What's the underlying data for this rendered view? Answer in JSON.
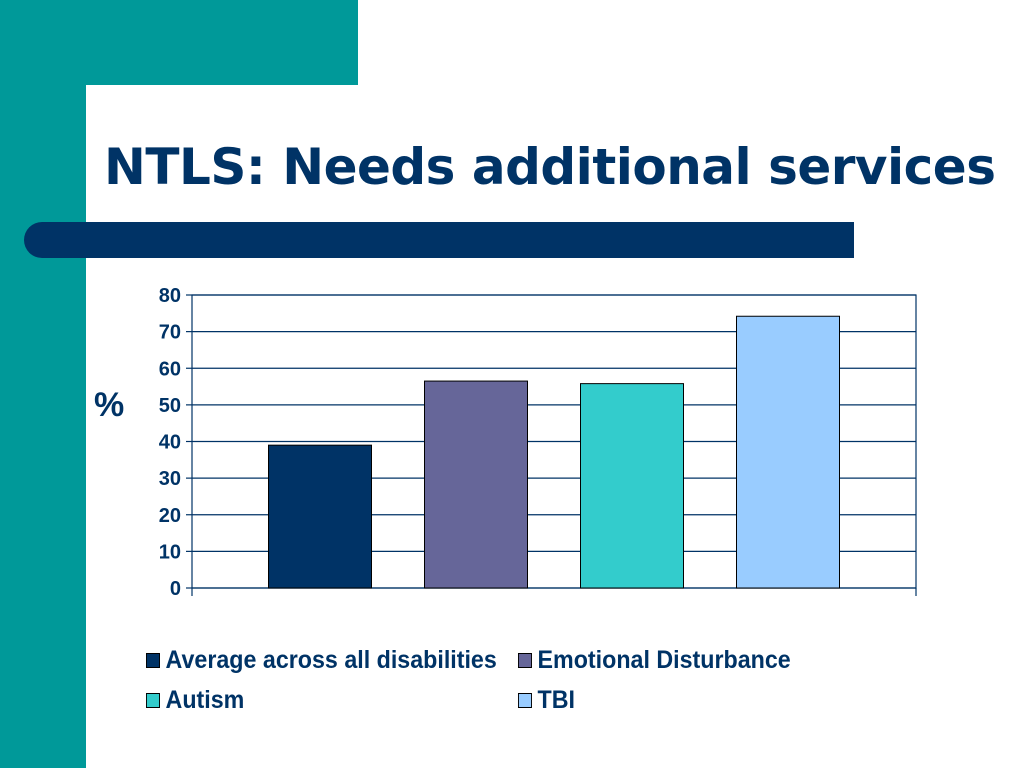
{
  "slide": {
    "title": "NTLS: Needs additional services",
    "title_color": "#003366",
    "teal_color": "#009999",
    "bar_color": "#003366"
  },
  "chart_data": {
    "type": "bar",
    "title": "",
    "ylabel": "%",
    "xlabel": "",
    "ylim": [
      0,
      80
    ],
    "yticks": [
      0,
      10,
      20,
      30,
      40,
      50,
      60,
      70,
      80
    ],
    "grid": true,
    "legend_position": "bottom",
    "series": [
      {
        "name": "Average across all disabilities",
        "values": [
          39
        ],
        "color": "#003366"
      },
      {
        "name": "Emotional Disturbance",
        "values": [
          56.5
        ],
        "color": "#666699"
      },
      {
        "name": "Autism",
        "values": [
          55.8
        ],
        "color": "#33CCCC"
      },
      {
        "name": "TBI",
        "values": [
          74.2
        ],
        "color": "#99CCFF"
      }
    ]
  }
}
